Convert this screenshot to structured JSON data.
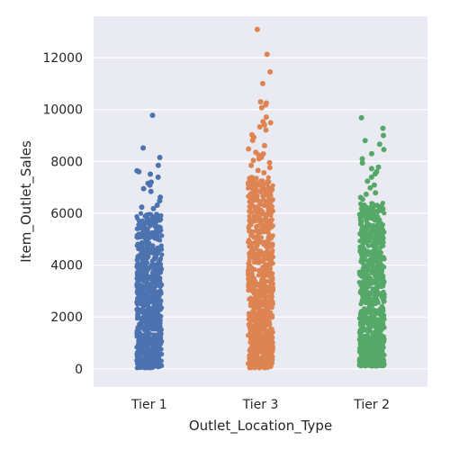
{
  "chart_data": {
    "type": "scatter",
    "style": "strip",
    "xlabel": "Outlet_Location_Type",
    "ylabel": "Item_Outlet_Sales",
    "ylim": [
      -700,
      13600
    ],
    "yticks": [
      0,
      2000,
      4000,
      6000,
      8000,
      10000,
      12000
    ],
    "yticks_text": [
      "0",
      "2000",
      "4000",
      "6000",
      "8000",
      "10000",
      "12000"
    ],
    "grid": true,
    "background": "#EAEAF2",
    "categories": [
      "Tier 1",
      "Tier 3",
      "Tier 2"
    ],
    "series": [
      {
        "category": "Tier 1",
        "color": "#4C72B0",
        "dense_range": [
          33,
          6000
        ],
        "outliers": [
          9780,
          8520,
          8150,
          7850,
          7640,
          7600,
          7510,
          7390,
          7200,
          7150,
          7080,
          6950,
          6840,
          6620,
          6480,
          6310,
          6240,
          6180
        ]
      },
      {
        "category": "Tier 3",
        "color": "#DD8452",
        "dense_range": [
          33,
          7400
        ],
        "outliers": [
          13090,
          12130,
          11450,
          11000,
          10300,
          10250,
          10180,
          10070,
          9710,
          9530,
          9490,
          9410,
          9330,
          9210,
          9030,
          8930,
          8810,
          8610,
          8480,
          8350,
          8290,
          8240,
          8160,
          8100,
          8040,
          7950,
          7850,
          7760,
          7650,
          7560
        ]
      },
      {
        "category": "Tier 2",
        "color": "#55A868",
        "dense_range": [
          100,
          6400
        ],
        "outliers": [
          9680,
          9280,
          9000,
          8800,
          8660,
          8460,
          8300,
          8100,
          7940,
          7780,
          7720,
          7600,
          7520,
          7390,
          7240,
          7090,
          6980,
          6790,
          6730,
          6610,
          6540
        ]
      }
    ]
  }
}
